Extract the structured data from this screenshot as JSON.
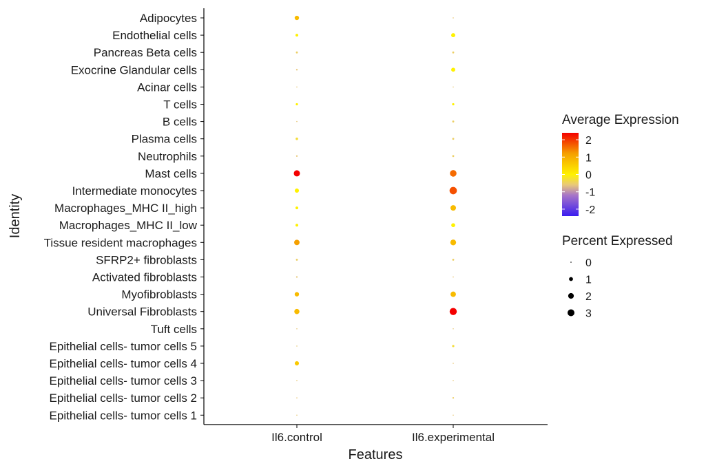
{
  "chart_data": {
    "type": "scatter",
    "subtype": "dot-plot",
    "xlabel": "Features",
    "ylabel": "Identity",
    "features": [
      "Il6.control",
      "Il6.experimental"
    ],
    "identities": [
      "Adipocytes",
      "Endothelial cells",
      "Pancreas Beta cells",
      "Exocrine Glandular cells",
      "Acinar cells",
      "T cells",
      "B cells",
      "Plasma cells",
      "Neutrophils",
      "Mast cells",
      "Intermediate monocytes",
      "Macrophages_MHC II_high",
      "Macrophages_MHC II_low",
      "Tissue resident macrophages",
      "SFRP2+ fibroblasts",
      "Activated fibroblasts",
      "Myofibroblasts",
      "Universal Fibroblasts",
      "Tuft cells",
      "Epithelial cells- tumor cells 5",
      "Epithelial cells- tumor cells 4",
      "Epithelial cells- tumor cells 3",
      "Epithelial cells- tumor cells 2",
      "Epithelial cells- tumor cells 1"
    ],
    "points": [
      {
        "identity": "Adipocytes",
        "feature": "Il6.control",
        "pct": 1.5,
        "avg": 0.8
      },
      {
        "identity": "Adipocytes",
        "feature": "Il6.experimental",
        "pct": 0.1,
        "avg": -0.6
      },
      {
        "identity": "Endothelial cells",
        "feature": "Il6.control",
        "pct": 0.6,
        "avg": 0.0
      },
      {
        "identity": "Endothelial cells",
        "feature": "Il6.experimental",
        "pct": 1.3,
        "avg": 0.0
      },
      {
        "identity": "Pancreas Beta cells",
        "feature": "Il6.control",
        "pct": 0.3,
        "avg": -0.5
      },
      {
        "identity": "Pancreas Beta cells",
        "feature": "Il6.experimental",
        "pct": 0.3,
        "avg": -0.5
      },
      {
        "identity": "Exocrine Glandular cells",
        "feature": "Il6.control",
        "pct": 0.2,
        "avg": -0.6
      },
      {
        "identity": "Exocrine Glandular cells",
        "feature": "Il6.experimental",
        "pct": 1.3,
        "avg": 0.0
      },
      {
        "identity": "Acinar cells",
        "feature": "Il6.control",
        "pct": 0.1,
        "avg": -0.6
      },
      {
        "identity": "Acinar cells",
        "feature": "Il6.experimental",
        "pct": 0.1,
        "avg": -0.6
      },
      {
        "identity": "T cells",
        "feature": "Il6.control",
        "pct": 0.4,
        "avg": 0.0
      },
      {
        "identity": "T cells",
        "feature": "Il6.experimental",
        "pct": 0.4,
        "avg": 0.0
      },
      {
        "identity": "B cells",
        "feature": "Il6.control",
        "pct": 0.1,
        "avg": -0.6
      },
      {
        "identity": "B cells",
        "feature": "Il6.experimental",
        "pct": 0.3,
        "avg": -0.5
      },
      {
        "identity": "Plasma cells",
        "feature": "Il6.control",
        "pct": 0.5,
        "avg": -0.3
      },
      {
        "identity": "Plasma cells",
        "feature": "Il6.experimental",
        "pct": 0.3,
        "avg": -0.5
      },
      {
        "identity": "Neutrophils",
        "feature": "Il6.control",
        "pct": 0.2,
        "avg": -0.6
      },
      {
        "identity": "Neutrophils",
        "feature": "Il6.experimental",
        "pct": 0.3,
        "avg": -0.5
      },
      {
        "identity": "Mast cells",
        "feature": "Il6.control",
        "pct": 3.0,
        "avg": 2.4
      },
      {
        "identity": "Mast cells",
        "feature": "Il6.experimental",
        "pct": 3.4,
        "avg": 1.6
      },
      {
        "identity": "Intermediate monocytes",
        "feature": "Il6.control",
        "pct": 1.4,
        "avg": 0.0
      },
      {
        "identity": "Intermediate monocytes",
        "feature": "Il6.experimental",
        "pct": 4.2,
        "avg": 1.8
      },
      {
        "identity": "Macrophages_MHC II_high",
        "feature": "Il6.control",
        "pct": 0.6,
        "avg": 0.0
      },
      {
        "identity": "Macrophages_MHC II_high",
        "feature": "Il6.experimental",
        "pct": 2.4,
        "avg": 0.8
      },
      {
        "identity": "Macrophages_MHC II_low",
        "feature": "Il6.control",
        "pct": 0.6,
        "avg": 0.0
      },
      {
        "identity": "Macrophages_MHC II_low",
        "feature": "Il6.experimental",
        "pct": 1.2,
        "avg": 0.0
      },
      {
        "identity": "Tissue resident macrophages",
        "feature": "Il6.control",
        "pct": 2.3,
        "avg": 1.2
      },
      {
        "identity": "Tissue resident macrophages",
        "feature": "Il6.experimental",
        "pct": 2.6,
        "avg": 0.8
      },
      {
        "identity": "SFRP2+ fibroblasts",
        "feature": "Il6.control",
        "pct": 0.3,
        "avg": -0.5
      },
      {
        "identity": "SFRP2+ fibroblasts",
        "feature": "Il6.experimental",
        "pct": 0.3,
        "avg": -0.5
      },
      {
        "identity": "Activated fibroblasts",
        "feature": "Il6.control",
        "pct": 0.2,
        "avg": -0.6
      },
      {
        "identity": "Activated fibroblasts",
        "feature": "Il6.experimental",
        "pct": 0.1,
        "avg": -0.6
      },
      {
        "identity": "Myofibroblasts",
        "feature": "Il6.control",
        "pct": 1.5,
        "avg": 0.8
      },
      {
        "identity": "Myofibroblasts",
        "feature": "Il6.experimental",
        "pct": 2.3,
        "avg": 0.8
      },
      {
        "identity": "Universal Fibroblasts",
        "feature": "Il6.control",
        "pct": 2.1,
        "avg": 0.8
      },
      {
        "identity": "Universal Fibroblasts",
        "feature": "Il6.experimental",
        "pct": 4.0,
        "avg": 2.4
      },
      {
        "identity": "Tuft cells",
        "feature": "Il6.control",
        "pct": 0.05,
        "avg": -0.6
      },
      {
        "identity": "Tuft cells",
        "feature": "Il6.experimental",
        "pct": 0.05,
        "avg": -0.6
      },
      {
        "identity": "Epithelial cells- tumor cells 5",
        "feature": "Il6.control",
        "pct": 0.1,
        "avg": -0.6
      },
      {
        "identity": "Epithelial cells- tumor cells 5",
        "feature": "Il6.experimental",
        "pct": 0.4,
        "avg": -0.3
      },
      {
        "identity": "Epithelial cells- tumor cells 4",
        "feature": "Il6.control",
        "pct": 1.4,
        "avg": 0.6
      },
      {
        "identity": "Epithelial cells- tumor cells 4",
        "feature": "Il6.experimental",
        "pct": 0.1,
        "avg": -0.6
      },
      {
        "identity": "Epithelial cells- tumor cells 3",
        "feature": "Il6.control",
        "pct": 0.1,
        "avg": -0.6
      },
      {
        "identity": "Epithelial cells- tumor cells 3",
        "feature": "Il6.experimental",
        "pct": 0.1,
        "avg": -0.6
      },
      {
        "identity": "Epithelial cells- tumor cells 2",
        "feature": "Il6.control",
        "pct": 0.1,
        "avg": -0.6
      },
      {
        "identity": "Epithelial cells- tumor cells 2",
        "feature": "Il6.experimental",
        "pct": 0.2,
        "avg": -0.5
      },
      {
        "identity": "Epithelial cells- tumor cells 1",
        "feature": "Il6.control",
        "pct": 0.1,
        "avg": -0.6
      },
      {
        "identity": "Epithelial cells- tumor cells 1",
        "feature": "Il6.experimental",
        "pct": 0.1,
        "avg": -0.6
      }
    ],
    "color_legend": {
      "title": "Average Expression",
      "ticks": [
        2,
        1,
        0,
        -1,
        -2
      ],
      "range": [
        -2.4,
        2.4
      ],
      "gradient": [
        {
          "value": -2.4,
          "color": "#3a1cf0"
        },
        {
          "value": -1.2,
          "color": "#a775c8"
        },
        {
          "value": -0.6,
          "color": "#e8c87a"
        },
        {
          "value": 0.0,
          "color": "#fff200"
        },
        {
          "value": 1.2,
          "color": "#f5a000"
        },
        {
          "value": 2.4,
          "color": "#f40000"
        }
      ]
    },
    "size_legend": {
      "title": "Percent Expressed",
      "values": [
        0,
        1,
        2,
        3
      ]
    },
    "legend_position": "right",
    "grid": false
  }
}
